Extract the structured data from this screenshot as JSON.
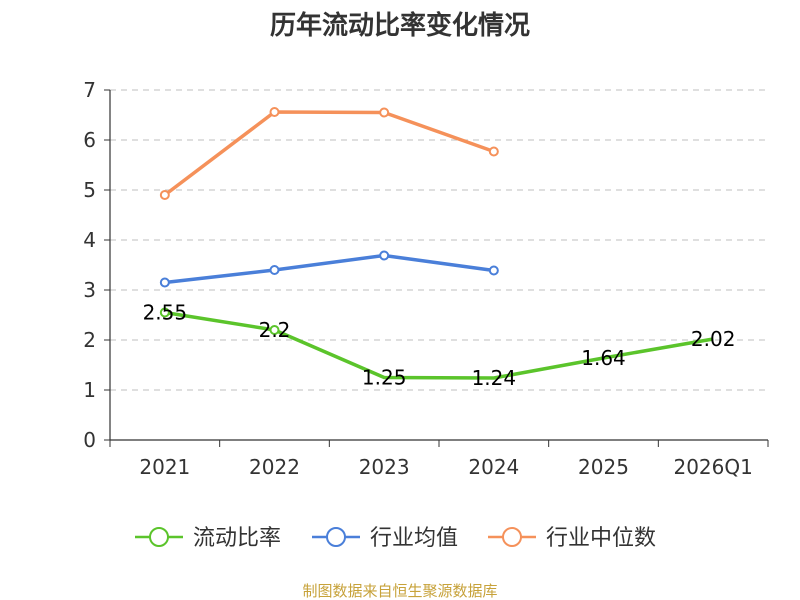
{
  "chart_data": {
    "type": "line",
    "title": "历年流动比率变化情况",
    "categories": [
      "2021",
      "2022",
      "2023",
      "2024",
      "2025",
      "2026Q1"
    ],
    "ylim": [
      0,
      7
    ],
    "yticks": [
      0,
      1,
      2,
      3,
      4,
      5,
      6,
      7
    ],
    "grid": true,
    "legend_position": "bottom",
    "series": [
      {
        "name": "流动比率",
        "color": "#5bc42b",
        "values": [
          2.55,
          2.2,
          1.25,
          1.24,
          1.64,
          2.02
        ],
        "labels": [
          "2.55",
          "2.2",
          "1.25",
          "1.24",
          "1.64",
          "2.02"
        ],
        "show_labels": true,
        "show_markers": [
          true,
          true,
          false,
          false,
          false,
          false
        ]
      },
      {
        "name": "行业均值",
        "color": "#4a7fd9",
        "values": [
          3.15,
          3.4,
          3.69,
          3.39,
          null,
          null
        ],
        "show_labels": false,
        "show_markers": [
          true,
          true,
          true,
          true,
          false,
          false
        ]
      },
      {
        "name": "行业中位数",
        "color": "#f5915a",
        "values": [
          4.9,
          6.56,
          6.55,
          5.77,
          null,
          null
        ],
        "show_labels": false,
        "show_markers": [
          true,
          true,
          true,
          true,
          false,
          false
        ]
      }
    ]
  },
  "source": "制图数据来自恒生聚源数据库"
}
